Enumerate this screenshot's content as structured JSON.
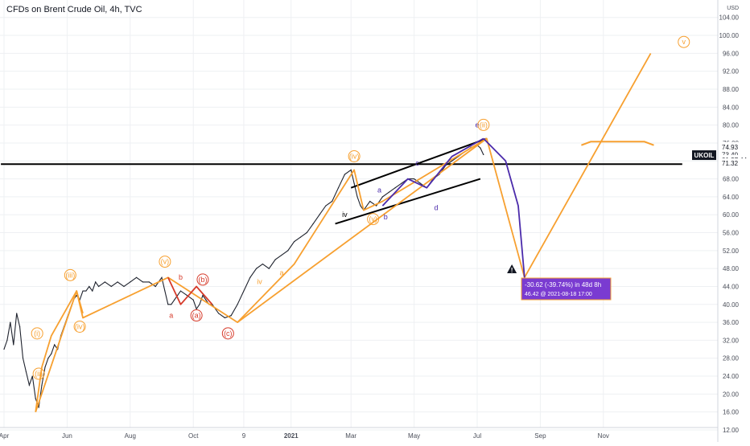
{
  "header": {
    "title": "CFDs on Brent Crude Oil, 4h, TVC"
  },
  "chart_data": {
    "type": "line",
    "symbol": "UKOIL",
    "currency": "USD",
    "title": "CFDs on Brent Crude Oil, 4h, TVC",
    "y_ticks": [
      12.0,
      16.0,
      20.0,
      24.0,
      28.0,
      32.0,
      36.0,
      40.0,
      44.0,
      48.0,
      52.0,
      56.0,
      60.0,
      64.0,
      68.0,
      72.0,
      76.0,
      80.0,
      84.0,
      88.0,
      92.0,
      96.0,
      100.0,
      104.0
    ],
    "y_tick_labels": [
      "12.00",
      "16.00",
      "20.00",
      "24.00",
      "28.00",
      "32.00",
      "36.00",
      "40.00",
      "44.00",
      "48.00",
      "52.00",
      "56.00",
      "60.00",
      "64.00",
      "68.00",
      "",
      "76.00",
      "80.00",
      "84.00",
      "88.00",
      "92.00",
      "96.00",
      "100.00",
      "104.00"
    ],
    "ylim": [
      12,
      107
    ],
    "x_ticks": [
      "Apr",
      "Jun",
      "Aug",
      "Oct",
      "9",
      "2021",
      "Mar",
      "May",
      "Jul",
      "Sep",
      "Nov"
    ],
    "x_tick_month_index": [
      0,
      2,
      4,
      6,
      7.6,
      9.1,
      11,
      13,
      15,
      17,
      19
    ],
    "price_labels": [
      {
        "label": "74.93",
        "value": 74.93,
        "color": "#131722"
      },
      {
        "label": "73.40",
        "value": 73.4,
        "color": "#131722"
      },
      {
        "label": "01:27:44",
        "value": 72.45,
        "color": "#131722"
      },
      {
        "label": "71.32",
        "value": 71.32,
        "color": "#131722"
      }
    ],
    "symbol_tag": {
      "label": "UKOIL",
      "value": 71.32
    },
    "price_series": [
      [
        0.0,
        30
      ],
      [
        0.1,
        32
      ],
      [
        0.2,
        36
      ],
      [
        0.3,
        31
      ],
      [
        0.4,
        38
      ],
      [
        0.5,
        35
      ],
      [
        0.6,
        28
      ],
      [
        0.7,
        25
      ],
      [
        0.8,
        22
      ],
      [
        0.9,
        24
      ],
      [
        1.0,
        19
      ],
      [
        1.1,
        17
      ],
      [
        1.2,
        22
      ],
      [
        1.3,
        26
      ],
      [
        1.4,
        28
      ],
      [
        1.5,
        29
      ],
      [
        1.6,
        31
      ],
      [
        1.7,
        30
      ],
      [
        1.8,
        33
      ],
      [
        1.9,
        35
      ],
      [
        2.0,
        37
      ],
      [
        2.1,
        39
      ],
      [
        2.2,
        41
      ],
      [
        2.3,
        42
      ],
      [
        2.4,
        41
      ],
      [
        2.5,
        43
      ],
      [
        2.6,
        43
      ],
      [
        2.7,
        44
      ],
      [
        2.8,
        43
      ],
      [
        2.9,
        45
      ],
      [
        3.0,
        44
      ],
      [
        3.2,
        45
      ],
      [
        3.4,
        44
      ],
      [
        3.6,
        45
      ],
      [
        3.8,
        44
      ],
      [
        4.0,
        45
      ],
      [
        4.2,
        46
      ],
      [
        4.4,
        45
      ],
      [
        4.6,
        45
      ],
      [
        4.8,
        44
      ],
      [
        5.0,
        46
      ],
      [
        5.1,
        43
      ],
      [
        5.2,
        40
      ],
      [
        5.3,
        40
      ],
      [
        5.4,
        41
      ],
      [
        5.5,
        42
      ],
      [
        5.6,
        43
      ],
      [
        5.8,
        42
      ],
      [
        6.0,
        41
      ],
      [
        6.1,
        39
      ],
      [
        6.2,
        40
      ],
      [
        6.3,
        42
      ],
      [
        6.4,
        41
      ],
      [
        6.5,
        40
      ],
      [
        6.6,
        40
      ],
      [
        6.8,
        38
      ],
      [
        7.0,
        37
      ],
      [
        7.2,
        37.5
      ],
      [
        7.4,
        40
      ],
      [
        7.6,
        43
      ],
      [
        7.8,
        46
      ],
      [
        8.0,
        48
      ],
      [
        8.2,
        49
      ],
      [
        8.4,
        48
      ],
      [
        8.6,
        50
      ],
      [
        8.8,
        51
      ],
      [
        9.0,
        52
      ],
      [
        9.2,
        54
      ],
      [
        9.4,
        55
      ],
      [
        9.6,
        56
      ],
      [
        9.8,
        58
      ],
      [
        10.0,
        60
      ],
      [
        10.2,
        62
      ],
      [
        10.4,
        63
      ],
      [
        10.6,
        66
      ],
      [
        10.8,
        69
      ],
      [
        11.0,
        70
      ],
      [
        11.1,
        67
      ],
      [
        11.2,
        64
      ],
      [
        11.3,
        62
      ],
      [
        11.4,
        61
      ],
      [
        11.6,
        63
      ],
      [
        11.8,
        62
      ],
      [
        12.0,
        64
      ],
      [
        12.2,
        65
      ],
      [
        12.4,
        66
      ],
      [
        12.6,
        67
      ],
      [
        12.8,
        68
      ],
      [
        13.0,
        68
      ],
      [
        13.2,
        67
      ],
      [
        13.4,
        66
      ],
      [
        13.6,
        68
      ],
      [
        13.8,
        69
      ],
      [
        14.0,
        71
      ],
      [
        14.2,
        72
      ],
      [
        14.4,
        73
      ],
      [
        14.6,
        74
      ],
      [
        14.8,
        75
      ],
      [
        15.0,
        75.5
      ],
      [
        15.1,
        74.9
      ],
      [
        15.2,
        73.4
      ]
    ],
    "wave_lines": [
      {
        "name": "orange-wave-1",
        "color": "#f7a030",
        "points": [
          [
            1.0,
            16
          ],
          [
            2.3,
            43
          ],
          [
            2.5,
            37
          ],
          [
            5.2,
            46
          ],
          [
            7.4,
            36
          ],
          [
            15.3,
            77
          ],
          [
            16.5,
            46
          ],
          [
            20.5,
            96
          ]
        ]
      },
      {
        "name": "orange-wave-2",
        "color": "#f7a030",
        "points": [
          [
            1.0,
            16
          ],
          [
            1.2,
            26
          ],
          [
            1.5,
            33
          ],
          [
            2.3,
            43
          ],
          [
            2.5,
            38
          ]
        ]
      },
      {
        "name": "orange-corrective",
        "color": "#f7a030",
        "points": [
          [
            7.4,
            36
          ],
          [
            9.2,
            49
          ],
          [
            11.1,
            70
          ],
          [
            11.4,
            61
          ],
          [
            12.0,
            63
          ],
          [
            15.3,
            77
          ]
        ]
      },
      {
        "name": "red-abc",
        "color": "#d63a2a",
        "points": [
          [
            5.2,
            46
          ],
          [
            5.6,
            40
          ],
          [
            6.1,
            44
          ],
          [
            6.6,
            40
          ]
        ]
      },
      {
        "name": "purple-projection",
        "color": "#4b2bab",
        "points": [
          [
            12.0,
            62
          ],
          [
            12.8,
            68
          ],
          [
            13.4,
            66
          ],
          [
            14.2,
            73
          ],
          [
            15.2,
            77
          ]
        ]
      },
      {
        "name": "purple-drop",
        "color": "#4b2bab",
        "points": [
          [
            15.2,
            77
          ],
          [
            15.9,
            72
          ],
          [
            16.3,
            62
          ],
          [
            16.5,
            46
          ]
        ]
      }
    ],
    "channel_lines": [
      {
        "name": "upper-channel",
        "color": "#000000",
        "points": [
          [
            11.0,
            66
          ],
          [
            15.3,
            77
          ]
        ]
      },
      {
        "name": "lower-channel",
        "color": "#000000",
        "points": [
          [
            10.5,
            58
          ],
          [
            15.1,
            68
          ]
        ]
      },
      {
        "name": "horizontal-level",
        "color": "#000000",
        "points": [
          [
            -0.1,
            71.3
          ],
          [
            21.5,
            71.3
          ]
        ]
      },
      {
        "name": "target-zone",
        "color": "#f7a030",
        "points": [
          [
            18.3,
            75.5
          ],
          [
            18.6,
            76.3
          ],
          [
            20.3,
            76.3
          ],
          [
            20.6,
            75.5
          ]
        ]
      }
    ],
    "wave_labels": [
      {
        "text": "(i)",
        "x": 1.05,
        "y": 33,
        "color": "#f7a030"
      },
      {
        "text": "(ii)",
        "x": 1.1,
        "y": 24,
        "color": "#f7a030"
      },
      {
        "text": "(iii)",
        "x": 2.1,
        "y": 46,
        "color": "#f7a030"
      },
      {
        "text": "(iv)",
        "x": 2.4,
        "y": 34.5,
        "color": "#f7a030"
      },
      {
        "text": "(v)",
        "x": 5.1,
        "y": 49,
        "color": "#f7a030"
      },
      {
        "text": "b",
        "x": 5.6,
        "y": 45.5,
        "color": "#d63a2a"
      },
      {
        "text": "(b)",
        "x": 6.3,
        "y": 45,
        "color": "#d63a2a"
      },
      {
        "text": "a",
        "x": 5.3,
        "y": 37,
        "color": "#d63a2a"
      },
      {
        "text": "(a)",
        "x": 6.1,
        "y": 37,
        "color": "#d63a2a"
      },
      {
        "text": "(c)",
        "x": 7.1,
        "y": 33,
        "color": "#d63a2a"
      },
      {
        "text": "(iv)",
        "x": 11.1,
        "y": 72.5,
        "color": "#f7a030"
      },
      {
        "text": "a",
        "x": 11.9,
        "y": 65,
        "color": "#4b2bab"
      },
      {
        "text": "b",
        "x": 12.1,
        "y": 59,
        "color": "#4b2bab"
      },
      {
        "text": "c",
        "x": 13.1,
        "y": 71,
        "color": "#4b2bab"
      },
      {
        "text": "d",
        "x": 13.7,
        "y": 61,
        "color": "#4b2bab"
      },
      {
        "text": "(v)",
        "x": 11.7,
        "y": 58.5,
        "color": "#f7a030"
      },
      {
        "text": "e",
        "x": 15.0,
        "y": 79.5,
        "color": "#4b2bab"
      },
      {
        "text": "(ii)",
        "x": 15.2,
        "y": 79.5,
        "color": "#f7a030"
      },
      {
        "text": "v",
        "x": 21.55,
        "y": 98,
        "color": "#f7a030"
      },
      {
        "text": "iv",
        "x": 8.1,
        "y": 44.5,
        "color": "#f7a030"
      },
      {
        "text": "a",
        "x": 8.8,
        "y": 46.5,
        "color": "#f7a030"
      },
      {
        "text": "iv",
        "x": 10.8,
        "y": 59.5,
        "color": "#000000"
      }
    ],
    "measure_tooltip": {
      "line1": "-30.62 (-39.74%) in 48d 8h",
      "line2": "46.42 @ 2021-08-18  17:00",
      "bg": "#7a3bd1"
    },
    "warning_marker": {
      "text": "!",
      "x": 16.1,
      "y": 47.5
    },
    "grid": true
  }
}
